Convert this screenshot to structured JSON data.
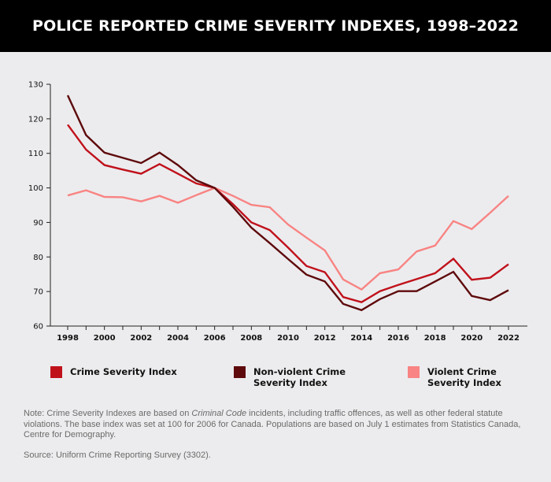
{
  "title": "POLICE REPORTED CRIME SEVERITY INDEXES, 1998–2022",
  "chart_data": {
    "type": "line",
    "x": [
      1998,
      1999,
      2000,
      2001,
      2002,
      2003,
      2004,
      2005,
      2006,
      2007,
      2008,
      2009,
      2010,
      2011,
      2012,
      2013,
      2014,
      2015,
      2016,
      2017,
      2018,
      2019,
      2020,
      2021,
      2022
    ],
    "x_tick_labels": [
      "1998",
      "2000",
      "2002",
      "2004",
      "2006",
      "2008",
      "2010",
      "2012",
      "2014",
      "2016",
      "2018",
      "2020",
      "2022"
    ],
    "y_tick_labels": [
      "60",
      "70",
      "80",
      "90",
      "100",
      "110",
      "120",
      "130"
    ],
    "ylim": [
      60,
      130
    ],
    "xlim": [
      1998,
      2022
    ],
    "series": [
      {
        "name": "Crime Severity Index",
        "color": "#c0111b",
        "values": [
          118.3,
          111.1,
          106.6,
          105.3,
          104.1,
          106.9,
          104.1,
          101.3,
          100.0,
          95.3,
          90.0,
          87.8,
          82.7,
          77.4,
          75.6,
          68.4,
          66.9,
          70.1,
          71.9,
          73.6,
          75.3,
          79.5,
          73.4,
          74.0,
          77.9
        ]
      },
      {
        "name": "Non-violent Crime Severity Index",
        "color": "#5e0a0c",
        "values": [
          126.8,
          115.3,
          110.2,
          108.7,
          107.2,
          110.2,
          106.6,
          102.2,
          100.0,
          94.5,
          88.5,
          84.0,
          79.4,
          74.9,
          72.9,
          66.4,
          64.6,
          67.8,
          70.1,
          70.1,
          72.9,
          75.7,
          68.7,
          67.5,
          70.4
        ]
      },
      {
        "name": "Violent Crime Severity Index",
        "color": "#f88483",
        "values": [
          97.8,
          99.3,
          97.4,
          97.3,
          96.1,
          97.7,
          95.7,
          97.9,
          100.0,
          97.7,
          95.1,
          94.4,
          89.4,
          85.6,
          81.9,
          73.5,
          70.6,
          75.3,
          76.4,
          81.6,
          83.3,
          90.4,
          88.1,
          92.8,
          97.7
        ]
      }
    ],
    "grid": false,
    "legend_position": "bottom"
  },
  "legend": [
    {
      "line1": "Crime Severity Index",
      "line2": "",
      "color": "#c0111b"
    },
    {
      "line1": "Non-violent Crime",
      "line2": "Severity Index",
      "color": "#5e0a0c"
    },
    {
      "line1": "Violent Crime",
      "line2": "Severity Index",
      "color": "#f88483"
    }
  ],
  "note": {
    "label": "Note:",
    "text_before": " Crime Severity Indexes are based on ",
    "italic": "Criminal Code",
    "text_after": " incidents, including traffic offences, as well as other federal statute violations. The base index was set at 100 for 2006 for Canada. Populations are based on July 1 estimates from Statistics Canada, Centre for Demography."
  },
  "source": {
    "label": "Source:",
    "text": " Uniform Crime Reporting Survey (3302)."
  }
}
